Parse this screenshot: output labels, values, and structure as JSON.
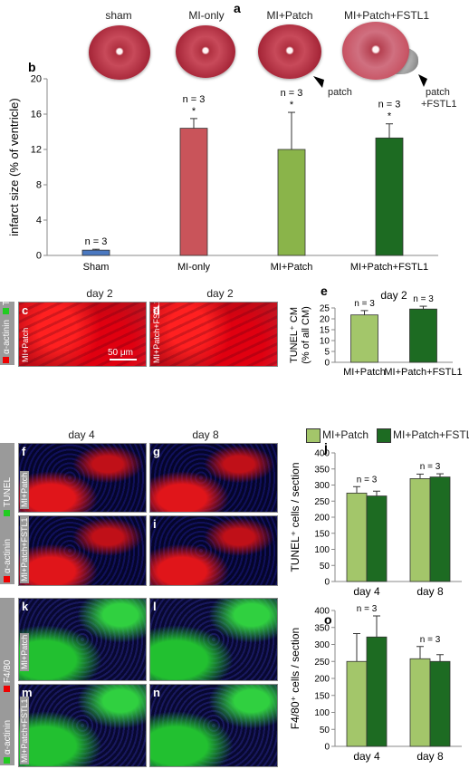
{
  "panels": {
    "a": "a",
    "b": "b",
    "c": "c",
    "d": "d",
    "e": "e",
    "f": "f",
    "g": "g",
    "h": "h",
    "i": "i",
    "j": "j",
    "k": "k",
    "l": "l",
    "m": "m",
    "n": "n",
    "o": "o"
  },
  "hearts": [
    {
      "label": "sham"
    },
    {
      "label": "MI-only"
    },
    {
      "label": "MI+Patch"
    },
    {
      "label": "MI+Patch+FSTL1"
    }
  ],
  "arrows": {
    "patch": "patch",
    "patch_fstl1_line1": "patch",
    "patch_fstl1_line2": "+FSTL1"
  },
  "micro": {
    "day2": "day 2",
    "day4": "day 4",
    "day8": "day 8",
    "tunel": "TUNEL",
    "actinin": "α-actinin",
    "f480": "F4/80",
    "mi_patch": "MI+Patch",
    "mi_patch_fstl1": "MI+Patch+FSTL1",
    "scale": "50 μm"
  },
  "legend": {
    "a": "MI+Patch",
    "b": "MI+Patch+FSTL1",
    "color_a": "#a3c66a",
    "color_b": "#1d6b22"
  },
  "chart_data": [
    {
      "id": "b",
      "type": "bar",
      "categories": [
        "Sham",
        "MI-only",
        "MI+Patch",
        "MI+Patch+FSTL1"
      ],
      "values": [
        0.6,
        14.4,
        12.0,
        13.3
      ],
      "errors": [
        0.1,
        1.1,
        4.2,
        1.6
      ],
      "colors": [
        "#4a78c0",
        "#c9545a",
        "#8ab44a",
        "#1d6b22"
      ],
      "annotations": [
        "n = 3",
        "n = 3\n*",
        "n = 3\n*",
        "n = 3\n*"
      ],
      "ylabel": "infarct size (% of ventricle)",
      "ylim": [
        0,
        20
      ],
      "yticks": [
        0,
        4,
        8,
        12,
        16,
        20
      ]
    },
    {
      "id": "e",
      "type": "bar",
      "title": "day 2",
      "categories": [
        "MI+Patch",
        "MI+Patch+FSTL1"
      ],
      "values": [
        21.8,
        24.5
      ],
      "errors": [
        2.0,
        1.3
      ],
      "colors": [
        "#a3c66a",
        "#1d6b22"
      ],
      "annotations": [
        "n = 3",
        "n = 3"
      ],
      "ylabel": "TUNEL⁺ CM\n(% of all CM)",
      "ylim": [
        0,
        25
      ],
      "yticks": [
        0,
        5,
        10,
        15,
        20,
        25
      ]
    },
    {
      "id": "j",
      "type": "bar",
      "categories": [
        "day 4",
        "day 8"
      ],
      "series": [
        {
          "name": "MI+Patch",
          "values": [
            275,
            320
          ],
          "errors": [
            20,
            14
          ]
        },
        {
          "name": "MI+Patch+FSTL1",
          "values": [
            266,
            325
          ],
          "errors": [
            15,
            10
          ]
        }
      ],
      "annotations": [
        "n = 3",
        "n = 3"
      ],
      "ylabel": "TUNEL⁺ cells / section",
      "ylim": [
        0,
        400
      ],
      "yticks": [
        0,
        50,
        100,
        150,
        200,
        250,
        300,
        350,
        400
      ]
    },
    {
      "id": "o",
      "type": "bar",
      "categories": [
        "day 4",
        "day 8"
      ],
      "series": [
        {
          "name": "MI+Patch",
          "values": [
            250,
            258
          ],
          "errors": [
            82,
            36
          ]
        },
        {
          "name": "MI+Patch+FSTL1",
          "values": [
            322,
            250
          ],
          "errors": [
            62,
            20
          ]
        }
      ],
      "annotations": [
        "n = 3",
        "n = 3"
      ],
      "ylabel": "F4/80⁺ cells / section",
      "ylim": [
        0,
        400
      ],
      "yticks": [
        0,
        50,
        100,
        150,
        200,
        250,
        300,
        350,
        400
      ]
    }
  ]
}
